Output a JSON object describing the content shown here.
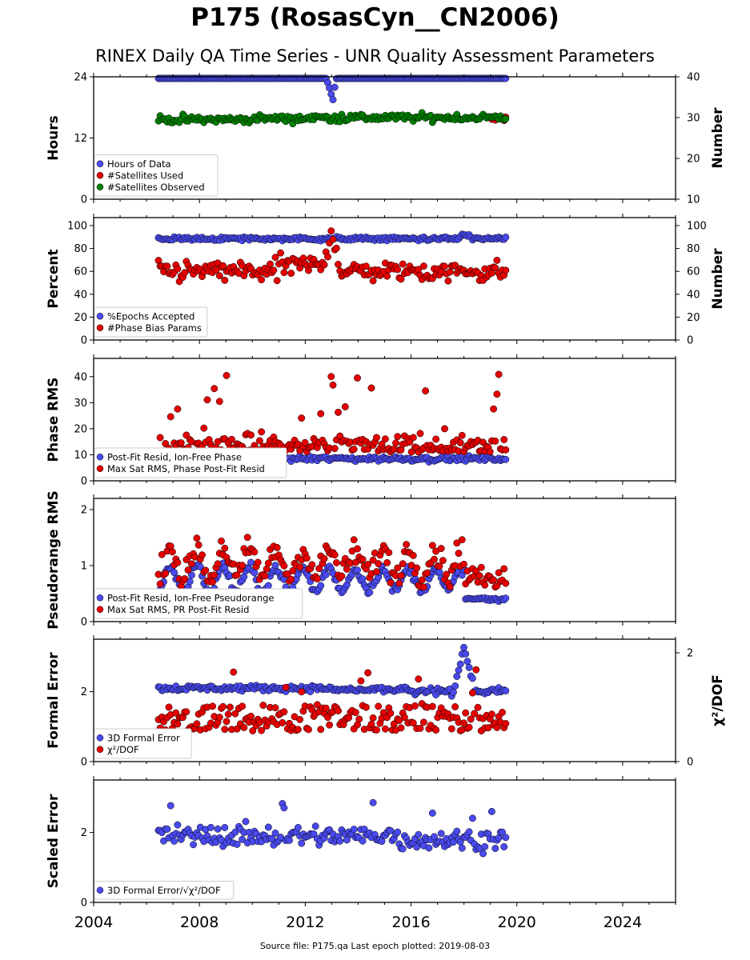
{
  "title": "P175 (RosasCyn__CN2006)",
  "subtitle": "RINEX Daily QA Time Series - UNR Quality Assessment Parameters",
  "footer": "Source file: P175.qa Last epoch plotted: 2019-08-03",
  "chart_data": {
    "type": "scatter",
    "x_range": [
      2004,
      2026
    ],
    "x_ticks": [
      2004,
      2008,
      2012,
      2016,
      2020,
      2024
    ],
    "data_span": [
      "2006-06",
      "2019-08-03"
    ],
    "panels": [
      {
        "ylabel": "Hours",
        "ylim": [
          0,
          24
        ],
        "yticks": [
          0,
          12,
          24
        ],
        "right_axis": {
          "label": "Number",
          "ylim": [
            10,
            40
          ],
          "yticks": [
            10,
            20,
            30,
            40
          ]
        },
        "legend_position": "lower-left",
        "series": [
          {
            "name": "Hours of Data",
            "color": "#4a4af0",
            "axis": "left",
            "typical": 24,
            "notes": "dips to ~18 around 2013.0"
          },
          {
            "name": "#Satellites Used",
            "color": "#e50000",
            "axis": "right",
            "typical": 30,
            "notes": "visible only 2019.0-2019.6 near 29.5-31"
          },
          {
            "name": "#Satellites Observed",
            "color": "#008000",
            "axis": "right",
            "typical": 29,
            "range": [
              28,
              31
            ]
          }
        ]
      },
      {
        "ylabel": "Percent",
        "ylim": [
          0,
          107
        ],
        "yticks": [
          0,
          20,
          40,
          60,
          80,
          100
        ],
        "right_axis": {
          "label": "Number",
          "ylim": [
            0,
            107
          ],
          "yticks": [
            0,
            20,
            40,
            60,
            80,
            100
          ]
        },
        "legend_position": "lower-left",
        "series": [
          {
            "name": "%Epochs Accepted",
            "color": "#4a4af0",
            "axis": "left",
            "typical": 88,
            "range": [
              85,
              93
            ]
          },
          {
            "name": "#Phase Bias Params",
            "color": "#e50000",
            "axis": "right",
            "typical": 60,
            "range": [
              45,
              100
            ]
          }
        ]
      },
      {
        "ylabel": "Phase RMS",
        "ylim": [
          0,
          47
        ],
        "yticks": [
          0,
          10,
          20,
          30,
          40
        ],
        "legend_position": "lower-left",
        "series": [
          {
            "name": "Post-Fit Resid, Ion-Free Phase",
            "color": "#4a4af0",
            "typical": 8.5
          },
          {
            "name": "Max Sat RMS, Phase Post-Fit Resid",
            "color": "#e50000",
            "typical": 12,
            "range": [
              5,
              45
            ]
          }
        ]
      },
      {
        "ylabel": "Pseudorange RMS",
        "ylim": [
          0,
          2.2
        ],
        "yticks": [
          0,
          1,
          2
        ],
        "legend_position": "lower-left",
        "series": [
          {
            "name": "Post-Fit Resid, Ion-Free Pseudorange",
            "color": "#4a4af0",
            "typical": 0.7,
            "seasonal": true
          },
          {
            "name": "Max Sat RMS, PR Post-Fit Resid",
            "color": "#e50000",
            "typical": 1.0,
            "seasonal": true,
            "max": 2.1
          }
        ]
      },
      {
        "ylabel": "Formal Error",
        "ylim": [
          0,
          3.5
        ],
        "yticks": [
          0,
          2
        ],
        "right_axis": {
          "label": "χ²/DOF",
          "ylim": [
            0,
            2.25
          ],
          "yticks": [
            0,
            2
          ]
        },
        "legend_position": "lower-left",
        "series": [
          {
            "name": "3D Formal Error",
            "color": "#4a4af0",
            "axis": "left",
            "typical": 2.1
          },
          {
            "name": "χ²/DOF",
            "color": "#e50000",
            "axis": "right",
            "typical": 0.85,
            "range": [
              0.6,
              1.1
            ]
          }
        ]
      },
      {
        "ylabel": "Scaled Error",
        "ylim": [
          0,
          3.5
        ],
        "yticks": [
          0,
          2
        ],
        "legend_position": "lower-left",
        "series": [
          {
            "name": "3D Formal Error/√χ²/DOF",
            "color": "#4a4af0",
            "typical": 1.9,
            "range": [
              1.3,
              3.4
            ]
          }
        ]
      }
    ]
  }
}
